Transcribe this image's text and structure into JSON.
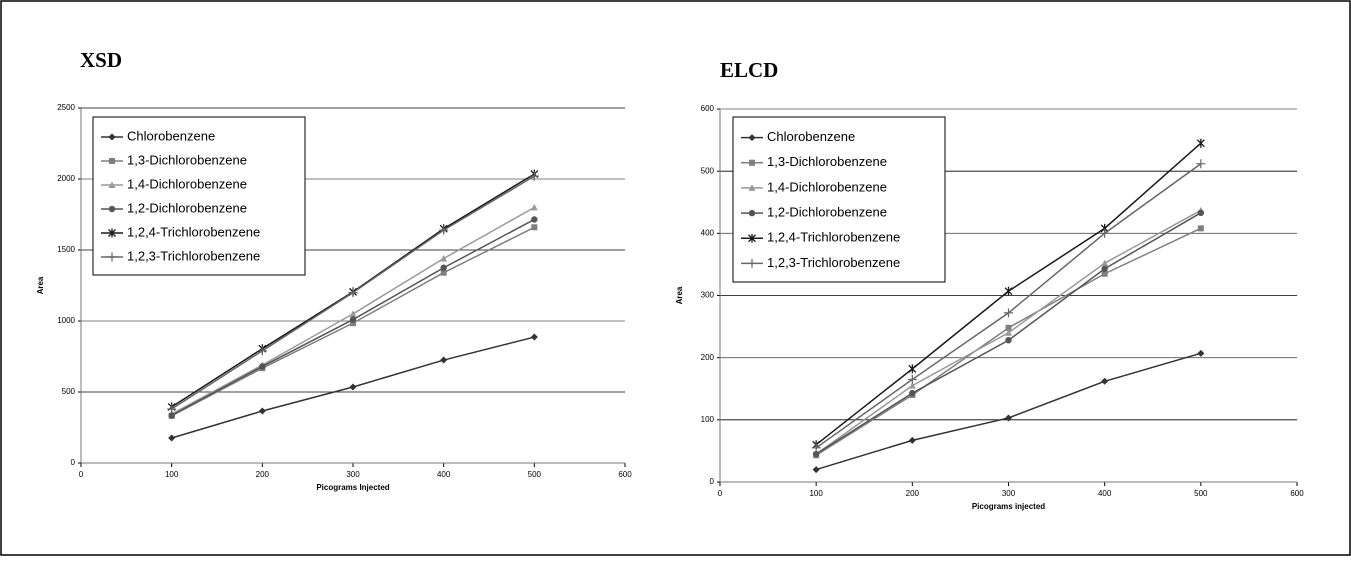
{
  "chart_data": [
    {
      "type": "line",
      "title": "XSD",
      "x_label": "Picograms Injected",
      "y_label": "Area",
      "x": [
        100,
        200,
        300,
        400,
        500
      ],
      "xlim": [
        0,
        600
      ],
      "xticks": [
        0,
        100,
        200,
        300,
        400,
        500,
        600
      ],
      "ylim": [
        0,
        2500
      ],
      "yticks": [
        0,
        500,
        1000,
        1500,
        2000,
        2500
      ],
      "grid": true,
      "legend": "upper left",
      "series": [
        {
          "name": "Chlorobenzene",
          "color": "#333333",
          "marker": "diamond",
          "values": [
            176,
            366,
            535,
            725,
            887
          ]
        },
        {
          "name": "1,3-Dichlorobenzene",
          "color": "#7f7f7f",
          "marker": "square",
          "values": [
            332,
            668,
            985,
            1340,
            1660
          ]
        },
        {
          "name": "1,4-Dichlorobenzene",
          "color": "#999999",
          "marker": "triangle",
          "values": [
            345,
            690,
            1050,
            1440,
            1800
          ]
        },
        {
          "name": "1,2-Dichlorobenzene",
          "color": "#555555",
          "marker": "circle",
          "values": [
            335,
            680,
            1010,
            1375,
            1715
          ]
        },
        {
          "name": "1,2,4-Trichlorobenzene",
          "color": "#1a1a1a",
          "marker": "star",
          "values": [
            395,
            805,
            1205,
            1650,
            2035
          ]
        },
        {
          "name": "1,2,3-Trichlorobenzene",
          "color": "#666666",
          "marker": "plus",
          "values": [
            380,
            790,
            1200,
            1640,
            2020
          ]
        }
      ]
    },
    {
      "type": "line",
      "title": "ELCD",
      "x_label": "Picograms injected",
      "y_label": "Area",
      "x": [
        100,
        200,
        300,
        400,
        500
      ],
      "xlim": [
        0,
        600
      ],
      "xticks": [
        0,
        100,
        200,
        300,
        400,
        500,
        600
      ],
      "ylim": [
        0,
        600
      ],
      "yticks": [
        0,
        100,
        200,
        300,
        400,
        500,
        600
      ],
      "grid": true,
      "legend": "upper left",
      "series": [
        {
          "name": "Chlorobenzene",
          "color": "#333333",
          "marker": "diamond",
          "values": [
            20,
            67,
            103,
            162,
            207
          ]
        },
        {
          "name": "1,3-Dichlorobenzene",
          "color": "#7f7f7f",
          "marker": "square",
          "values": [
            43,
            140,
            248,
            335,
            408
          ]
        },
        {
          "name": "1,4-Dichlorobenzene",
          "color": "#999999",
          "marker": "triangle",
          "values": [
            45,
            155,
            240,
            352,
            437
          ]
        },
        {
          "name": "1,2-Dichlorobenzene",
          "color": "#555555",
          "marker": "circle",
          "values": [
            45,
            143,
            228,
            343,
            433
          ]
        },
        {
          "name": "1,2,4-Trichlorobenzene",
          "color": "#1a1a1a",
          "marker": "star",
          "values": [
            60,
            182,
            307,
            408,
            545
          ]
        },
        {
          "name": "1,2,3-Trichlorobenzene",
          "color": "#666666",
          "marker": "plus",
          "values": [
            55,
            165,
            272,
            400,
            512
          ]
        }
      ]
    }
  ]
}
